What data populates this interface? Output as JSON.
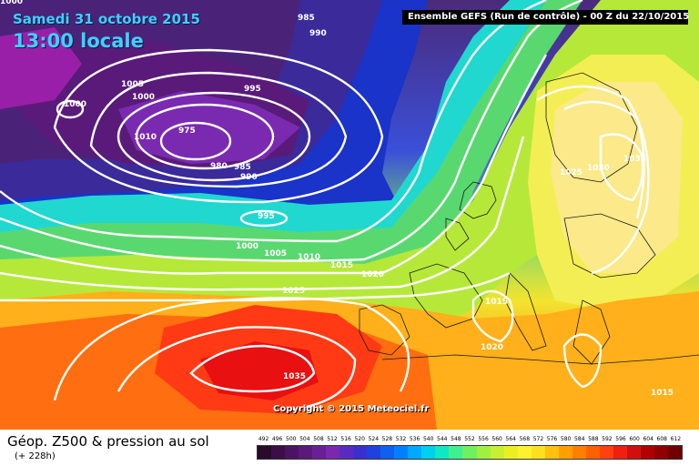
{
  "header": {
    "date": "Samedi 31 octobre 2015",
    "time": "13:00 locale",
    "run_info": "Ensemble GEFS  (Run de contrôle)  -  00 Z du 22/10/2015"
  },
  "map": {
    "copyright": "Copyright © 2015 Meteociel.fr",
    "isobar_labels": [
      {
        "id": "iso-1010-nw",
        "text": "1010"
      },
      {
        "id": "iso-1000-corner",
        "text": "1000"
      },
      {
        "id": "iso-985-top",
        "text": "985"
      },
      {
        "id": "iso-990-top",
        "text": "990"
      },
      {
        "id": "iso-1005-west",
        "text": "1005"
      },
      {
        "id": "iso-1000-west",
        "text": "1000"
      },
      {
        "id": "iso-1000-small",
        "text": "1000"
      },
      {
        "id": "iso-995-north",
        "text": "995"
      },
      {
        "id": "iso-975-low",
        "text": "975"
      },
      {
        "id": "iso-980",
        "text": "980"
      },
      {
        "id": "iso-985",
        "text": "985"
      },
      {
        "id": "iso-990",
        "text": "990"
      },
      {
        "id": "iso-995-mid",
        "text": "995"
      },
      {
        "id": "iso-1000-mid",
        "text": "1000"
      },
      {
        "id": "iso-1005-mid",
        "text": "1005"
      },
      {
        "id": "iso-1010-mid",
        "text": "1010"
      },
      {
        "id": "iso-1015-mid",
        "text": "1015"
      },
      {
        "id": "iso-1020-mid",
        "text": "1020"
      },
      {
        "id": "iso-1025-mid",
        "text": "1025"
      },
      {
        "id": "iso-1035-high",
        "text": "1035"
      },
      {
        "id": "iso-1025-europe",
        "text": "1025"
      },
      {
        "id": "iso-1030-europe",
        "text": "1030"
      },
      {
        "id": "iso-1035-europe",
        "text": "1035"
      },
      {
        "id": "iso-1015-italy",
        "text": "1015"
      },
      {
        "id": "iso-1020-med",
        "text": "1020"
      },
      {
        "id": "iso-1015-east",
        "text": "1015"
      }
    ]
  },
  "footer": {
    "product": "Géop. Z500 & pression au sol",
    "lead": "(+ 228h)"
  },
  "legend": {
    "labels": [
      "492",
      "496",
      "500",
      "504",
      "508",
      "512",
      "516",
      "520",
      "524",
      "528",
      "532",
      "536",
      "540",
      "544",
      "548",
      "552",
      "556",
      "560",
      "564",
      "568",
      "572",
      "576",
      "580",
      "584",
      "588",
      "592",
      "596",
      "600",
      "604",
      "608",
      "612"
    ],
    "colors": [
      "#2a0a2a",
      "#3b0f45",
      "#4b1460",
      "#5a1a7a",
      "#6a2095",
      "#7a28ae",
      "#5a2ac0",
      "#3a30d0",
      "#2040e0",
      "#1060f0",
      "#0080ff",
      "#00a8ff",
      "#00d0f0",
      "#10e8c0",
      "#40f090",
      "#70f060",
      "#a0f040",
      "#c8f030",
      "#eaf020",
      "#fff030",
      "#ffe020",
      "#ffc010",
      "#ffa000",
      "#ff8000",
      "#ff6000",
      "#ff4010",
      "#f02010",
      "#d01010",
      "#b00000",
      "#900000",
      "#700000"
    ]
  },
  "colors": {
    "title_cyan": "#3fd0ff",
    "isobar": "#ffffff"
  }
}
